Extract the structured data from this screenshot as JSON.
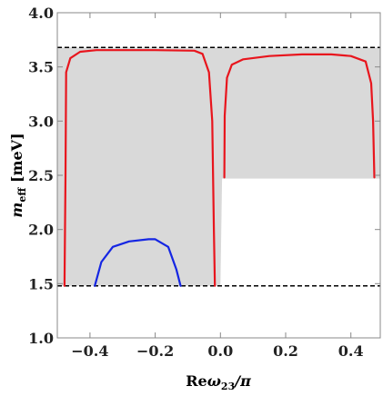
{
  "chart_data": {
    "type": "line",
    "xlabel": {
      "main": "Re",
      "symbol": "ω",
      "sub": "23",
      "suffix": "/π"
    },
    "ylabel": {
      "symbol": "m",
      "sub": "eff",
      "suffix": " [meV]"
    },
    "xlim": [
      -0.5,
      0.49
    ],
    "ylim": [
      1.0,
      4.0
    ],
    "xticks": [
      -0.4,
      -0.2,
      0.0,
      0.2,
      0.4
    ],
    "xtick_labels": [
      "−0.4",
      "−0.2",
      "0.0",
      "0.2",
      "0.4"
    ],
    "yticks": [
      1.0,
      1.5,
      2.0,
      2.5,
      3.0,
      3.5,
      4.0
    ],
    "ytick_labels": [
      "1.0",
      "1.5",
      "2.0",
      "2.5",
      "3.0",
      "3.5",
      "4.0"
    ],
    "grid": false,
    "legend": "none",
    "colors": {
      "region": "#d9d9d9",
      "red": "#e8151d",
      "blue": "#1526e3",
      "dashed": "#000000",
      "frame": "#888888"
    },
    "shaded_region": [
      [
        -0.5,
        1.48
      ],
      [
        0.0,
        1.48
      ],
      [
        0.005,
        2.47
      ],
      [
        0.49,
        2.47
      ],
      [
        0.49,
        3.68
      ],
      [
        -0.5,
        3.68
      ]
    ],
    "dashed_lines": [
      {
        "y": 1.48
      },
      {
        "y": 3.68
      }
    ],
    "series": [
      {
        "color": "red",
        "points": [
          [
            -0.478,
            1.48
          ],
          [
            -0.475,
            2.5
          ],
          [
            -0.473,
            3.45
          ],
          [
            -0.46,
            3.58
          ],
          [
            -0.43,
            3.64
          ],
          [
            -0.38,
            3.655
          ],
          [
            -0.2,
            3.655
          ],
          [
            -0.08,
            3.65
          ],
          [
            -0.055,
            3.62
          ],
          [
            -0.035,
            3.45
          ],
          [
            -0.025,
            3.0
          ],
          [
            -0.02,
            2.0
          ],
          [
            -0.017,
            1.48
          ]
        ]
      },
      {
        "color": "red",
        "points": [
          [
            0.012,
            2.48
          ],
          [
            0.013,
            3.05
          ],
          [
            0.02,
            3.4
          ],
          [
            0.035,
            3.52
          ],
          [
            0.07,
            3.57
          ],
          [
            0.15,
            3.6
          ],
          [
            0.25,
            3.615
          ],
          [
            0.34,
            3.615
          ],
          [
            0.4,
            3.6
          ],
          [
            0.445,
            3.55
          ],
          [
            0.462,
            3.35
          ],
          [
            0.468,
            3.0
          ],
          [
            0.472,
            2.48
          ]
        ]
      },
      {
        "color": "blue",
        "points": [
          [
            -0.385,
            1.48
          ],
          [
            -0.365,
            1.7
          ],
          [
            -0.33,
            1.84
          ],
          [
            -0.28,
            1.89
          ],
          [
            -0.22,
            1.91
          ],
          [
            -0.2,
            1.91
          ],
          [
            -0.16,
            1.84
          ],
          [
            -0.135,
            1.63
          ],
          [
            -0.122,
            1.48
          ]
        ]
      }
    ]
  }
}
